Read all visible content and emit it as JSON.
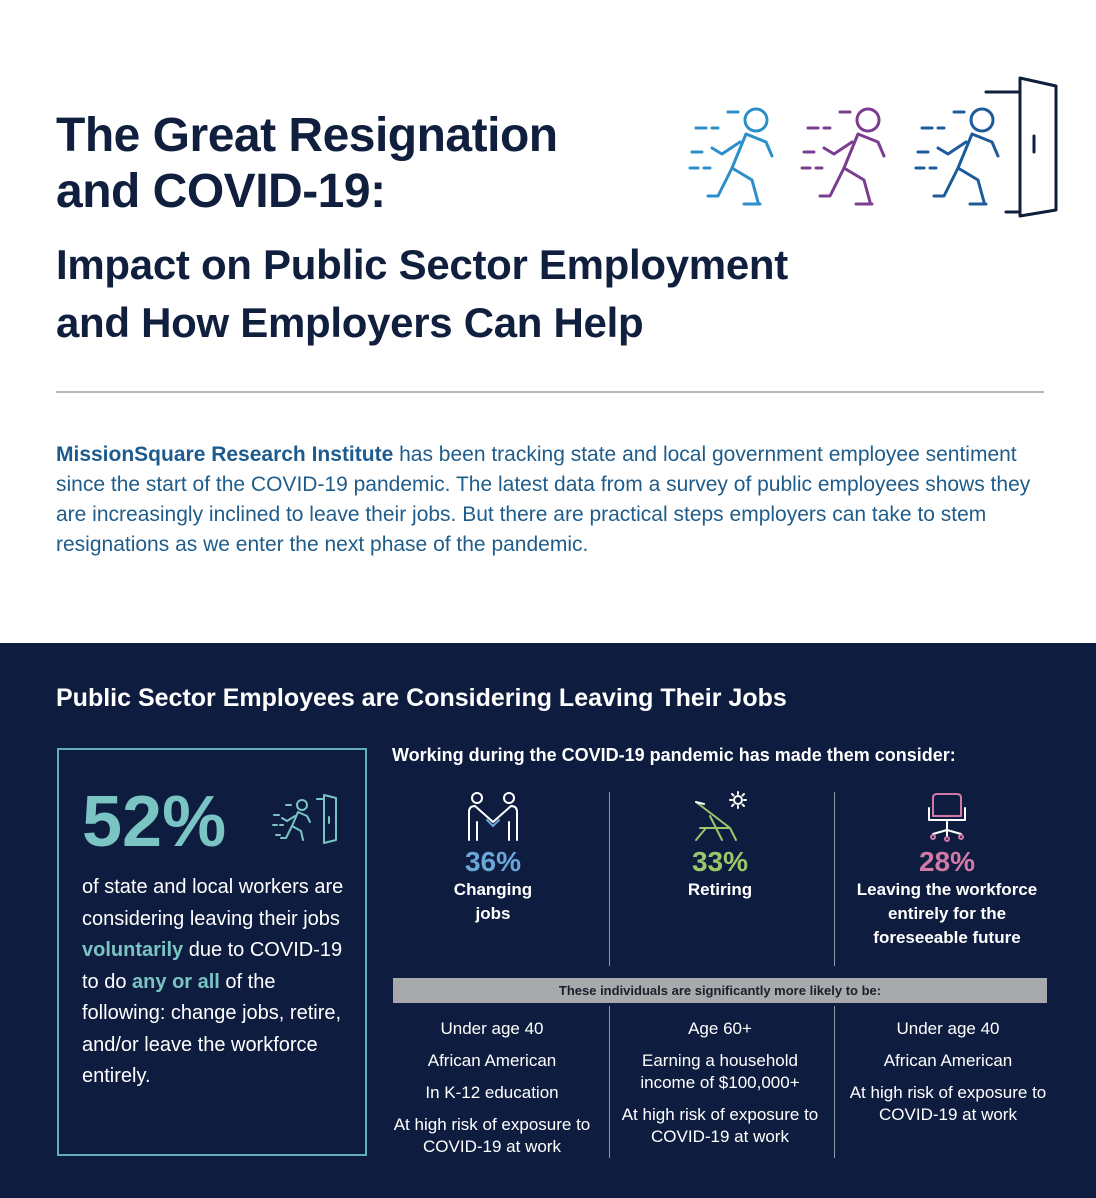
{
  "header": {
    "title_line1": "The Great Resignation",
    "title_line2": "and COVID-19:",
    "subtitle_line1": "Impact on Public Sector Employment",
    "subtitle_line2": "and How Employers Can Help"
  },
  "intro": {
    "org_name": "MissionSquare Research Institute",
    "text": " has been tracking state and local government employee sentiment since the start of the COVID-19 pandemic. The latest data from a survey of public employees shows they are increasingly inclined to leave their jobs. But there are practical steps employers can take to stem resignations as we enter the next phase of the pandemic."
  },
  "section": {
    "title": "Public Sector Employees are Considering Leaving Their Jobs",
    "headline_pct": "52%",
    "box_text_1": "of state and local workers are considering leaving their jobs ",
    "box_hl_1": "voluntarily",
    "box_text_2": " due to COVID-19 to do ",
    "box_hl_2": "any or all",
    "box_text_3": " of the following: change jobs, retire, and/or leave the workforce entirely.",
    "consider_heading": "Working during the COVID-19 pandemic has made them consider:",
    "likely_heading": "These individuals are significantly more likely to be:"
  },
  "columns": [
    {
      "pct": "36%",
      "label": "Changing jobs",
      "color": "#6aa7d8",
      "icon": "handshake-icon",
      "traits": [
        "Under age 40",
        "African American",
        "In K-12 education",
        "At high risk of exposure to COVID-19 at work"
      ]
    },
    {
      "pct": "33%",
      "label": "Retiring",
      "color": "#9bc76a",
      "icon": "beach-chair-icon",
      "traits": [
        "Age 60+",
        "Earning a household income of $100,000+",
        "At high risk of exposure to COVID-19 at work"
      ]
    },
    {
      "pct": "28%",
      "label": "Leaving the workforce entirely for the foreseeable future",
      "color": "#d279a8",
      "icon": "office-chair-icon",
      "traits": [
        "Under age 40",
        "African American",
        "At high risk of exposure to COVID-19 at work"
      ]
    }
  ],
  "colors": {
    "navy": "#0f1f3d",
    "intro_blue": "#1f5c8a",
    "teal": "#7ac4c4",
    "dark_bg": "#0e1d3f"
  }
}
